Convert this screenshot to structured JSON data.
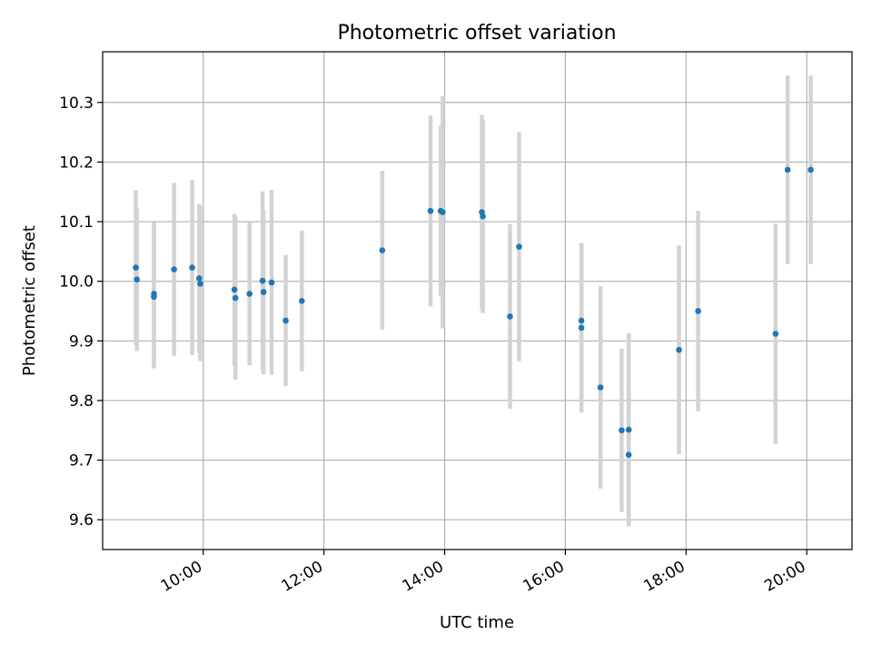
{
  "chart_data": {
    "type": "scatter",
    "title": "Photometric offset variation",
    "xlabel": "UTC time",
    "ylabel": "Photometric offset",
    "xlim": [
      "08:20",
      "20:45"
    ],
    "ylim": [
      9.55,
      10.385
    ],
    "x_ticks": [
      "10:00",
      "12:00",
      "14:00",
      "16:00",
      "18:00",
      "20:00"
    ],
    "y_ticks": [
      "9.6",
      "9.7",
      "9.8",
      "9.9",
      "10.0",
      "10.1",
      "10.2",
      "10.3"
    ],
    "grid": true,
    "colors": {
      "point": "#1f77b4",
      "errorbar": "#d3d3d3",
      "grid": "#b0b0b0"
    },
    "series": [
      {
        "points": [
          {
            "x": "08:53",
            "y": 10.023,
            "yerr": 0.13
          },
          {
            "x": "08:54",
            "y": 10.003,
            "yerr": 0.12
          },
          {
            "x": "09:11",
            "y": 9.979,
            "yerr": 0.12
          },
          {
            "x": "09:11",
            "y": 9.974,
            "yerr": 0.12
          },
          {
            "x": "09:31",
            "y": 10.02,
            "yerr": 0.145
          },
          {
            "x": "09:49",
            "y": 10.023,
            "yerr": 0.147
          },
          {
            "x": "09:56",
            "y": 10.005,
            "yerr": 0.125
          },
          {
            "x": "09:57",
            "y": 9.996,
            "yerr": 0.13
          },
          {
            "x": "10:31",
            "y": 9.986,
            "yerr": 0.127
          },
          {
            "x": "10:32",
            "y": 9.972,
            "yerr": 0.137
          },
          {
            "x": "10:46",
            "y": 9.979,
            "yerr": 0.12
          },
          {
            "x": "10:59",
            "y": 10.001,
            "yerr": 0.15
          },
          {
            "x": "11:00",
            "y": 9.982,
            "yerr": 0.138
          },
          {
            "x": "11:08",
            "y": 9.998,
            "yerr": 0.155
          },
          {
            "x": "11:22",
            "y": 9.934,
            "yerr": 0.11
          },
          {
            "x": "11:38",
            "y": 9.967,
            "yerr": 0.118
          },
          {
            "x": "12:58",
            "y": 10.052,
            "yerr": 0.133
          },
          {
            "x": "13:46",
            "y": 10.118,
            "yerr": 0.16
          },
          {
            "x": "13:56",
            "y": 10.118,
            "yerr": 0.143
          },
          {
            "x": "13:58",
            "y": 10.116,
            "yerr": 0.195
          },
          {
            "x": "14:37",
            "y": 10.116,
            "yerr": 0.163
          },
          {
            "x": "14:38",
            "y": 10.109,
            "yerr": 0.162
          },
          {
            "x": "15:05",
            "y": 9.941,
            "yerr": 0.155
          },
          {
            "x": "15:14",
            "y": 10.058,
            "yerr": 0.192
          },
          {
            "x": "16:16",
            "y": 9.934,
            "yerr": 0.13
          },
          {
            "x": "16:16",
            "y": 9.922,
            "yerr": 0.142
          },
          {
            "x": "16:35",
            "y": 9.822,
            "yerr": 0.17
          },
          {
            "x": "16:56",
            "y": 9.75,
            "yerr": 0.137
          },
          {
            "x": "17:03",
            "y": 9.751,
            "yerr": 0.162
          },
          {
            "x": "17:03",
            "y": 9.709,
            "yerr": 0.12
          },
          {
            "x": "17:53",
            "y": 9.885,
            "yerr": 0.175
          },
          {
            "x": "18:12",
            "y": 9.95,
            "yerr": 0.168
          },
          {
            "x": "19:29",
            "y": 9.912,
            "yerr": 0.185
          },
          {
            "x": "19:41",
            "y": 10.187,
            "yerr": 0.158
          },
          {
            "x": "20:04",
            "y": 10.187,
            "yerr": 0.158
          }
        ]
      }
    ]
  }
}
